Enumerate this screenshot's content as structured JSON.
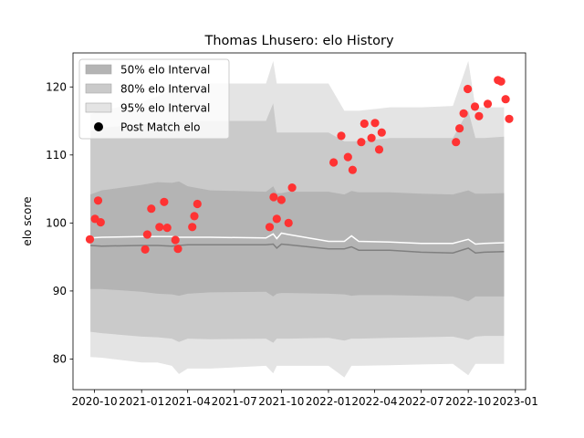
{
  "chart_data": {
    "type": "line",
    "title": "Thomas Lhusero: elo History",
    "xlabel": "",
    "ylabel": "elo score",
    "xlim": [
      "2020-08-20",
      "2023-01-21"
    ],
    "ylim": [
      75.5,
      125
    ],
    "x_ticks": [
      "2020-10",
      "2021-01",
      "2021-04",
      "2021-07",
      "2021-10",
      "2022-01",
      "2022-04",
      "2022-07",
      "2022-10",
      "2023-01"
    ],
    "y_ticks": [
      80,
      90,
      100,
      110,
      120
    ],
    "grid": false,
    "legend_position": "top-left",
    "legend": [
      {
        "label": "50% elo Interval",
        "kind": "band",
        "color": "#b4b4b4"
      },
      {
        "label": "80% elo Interval",
        "kind": "band",
        "color": "#cacaca"
      },
      {
        "label": "95% elo Interval",
        "kind": "band",
        "color": "#e4e4e4"
      },
      {
        "label": "Post Match elo",
        "kind": "marker",
        "color": "#000000"
      }
    ],
    "band_dates": [
      "2020-09-23",
      "2020-10-15",
      "2021-01-01",
      "2021-02-01",
      "2021-03-01",
      "2021-03-15",
      "2021-04-01",
      "2021-05-15",
      "2021-09-01",
      "2021-09-15",
      "2021-09-22",
      "2021-10-01",
      "2021-10-15",
      "2022-01-01",
      "2022-02-01",
      "2022-02-15",
      "2022-03-01",
      "2022-05-01",
      "2022-07-01",
      "2022-09-01",
      "2022-10-01",
      "2022-10-15",
      "2022-11-01",
      "2022-12-10"
    ],
    "series": [
      {
        "name": "95% elo Interval",
        "color": "#e4e4e4",
        "upper": [
          116,
          116.5,
          117.8,
          118.6,
          119.6,
          120,
          120,
          120.5,
          120.5,
          123.8,
          120.5,
          120.5,
          120.5,
          120.5,
          116.5,
          116.5,
          116.5,
          117,
          117,
          117.2,
          123.8,
          117,
          117,
          117
        ],
        "lower": [
          80.3,
          80.2,
          79.5,
          79.5,
          79,
          77.8,
          78.6,
          78.6,
          79,
          77.9,
          79,
          79,
          79,
          79,
          77.3,
          79,
          79,
          79.1,
          79.2,
          79.3,
          77.6,
          79.3,
          79.3,
          79.3
        ]
      },
      {
        "name": "80% elo Interval",
        "color": "#cacaca",
        "upper": [
          113.5,
          114,
          114.5,
          114.5,
          115,
          115,
          115,
          115,
          115,
          117.6,
          113.3,
          113.3,
          113.3,
          113.3,
          112,
          112,
          112,
          112.5,
          112.5,
          112.5,
          116.5,
          112.5,
          112.5,
          112.7
        ],
        "lower": [
          84,
          83.8,
          83.3,
          83.2,
          83,
          82.5,
          83,
          82.9,
          83,
          82.4,
          83,
          83,
          83,
          83.1,
          82.7,
          83,
          83,
          83.1,
          83.2,
          83.3,
          82.8,
          83.3,
          83.4,
          83.4
        ]
      },
      {
        "name": "50% elo Interval",
        "color": "#b4b4b4",
        "upper": [
          104.2,
          104.8,
          105.6,
          106,
          105.9,
          106.1,
          105.4,
          104.8,
          104.6,
          105.4,
          104.4,
          104.4,
          104.6,
          104.6,
          104.2,
          104.7,
          104.5,
          104.5,
          104.3,
          104.2,
          104.8,
          104.3,
          104.3,
          104.4
        ],
        "lower": [
          90.3,
          90.3,
          89.9,
          89.6,
          89.5,
          89.3,
          89.6,
          89.8,
          89.9,
          89.2,
          89.6,
          89.7,
          89.7,
          89.6,
          89.5,
          89.3,
          89.4,
          89.4,
          89.3,
          89.2,
          88.5,
          89.2,
          89.2,
          89.2
        ]
      },
      {
        "name": "mean",
        "color": "#ffffff",
        "values": [
          97.8,
          97.9,
          98,
          98,
          98,
          97.9,
          97.9,
          97.9,
          97.8,
          98.4,
          97.7,
          98.5,
          98.3,
          97.3,
          97.3,
          98.1,
          97.3,
          97.2,
          97,
          97,
          97.6,
          96.9,
          97,
          97.1
        ]
      },
      {
        "name": "median",
        "color": "#808080",
        "values": [
          96.7,
          96.6,
          96.7,
          96.7,
          96.6,
          96.7,
          96.8,
          96.8,
          96.8,
          96.9,
          96.3,
          96.9,
          96.8,
          96.2,
          96.2,
          96.5,
          96,
          96,
          95.7,
          95.6,
          96.3,
          95.6,
          95.7,
          95.8
        ]
      },
      {
        "name": "Post Match elo",
        "color": "#ff3333",
        "points": [
          [
            "2020-09-22",
            97.6
          ],
          [
            "2020-10-02",
            100.6
          ],
          [
            "2020-10-08",
            103.3
          ],
          [
            "2020-10-13",
            100.1
          ],
          [
            "2021-01-08",
            96.1
          ],
          [
            "2021-01-12",
            98.3
          ],
          [
            "2021-01-20",
            102.1
          ],
          [
            "2021-02-05",
            99.4
          ],
          [
            "2021-02-14",
            103.1
          ],
          [
            "2021-02-20",
            99.3
          ],
          [
            "2021-03-08",
            97.5
          ],
          [
            "2021-03-13",
            96.2
          ],
          [
            "2021-04-10",
            99.4
          ],
          [
            "2021-04-14",
            101
          ],
          [
            "2021-04-20",
            102.8
          ],
          [
            "2021-09-08",
            99.4
          ],
          [
            "2021-09-16",
            103.8
          ],
          [
            "2021-09-22",
            100.6
          ],
          [
            "2021-10-01",
            103.4
          ],
          [
            "2021-10-15",
            100
          ],
          [
            "2021-10-22",
            105.2
          ],
          [
            "2022-01-11",
            108.9
          ],
          [
            "2022-01-26",
            112.8
          ],
          [
            "2022-02-08",
            109.7
          ],
          [
            "2022-02-17",
            107.8
          ],
          [
            "2022-03-06",
            111.9
          ],
          [
            "2022-03-12",
            114.6
          ],
          [
            "2022-03-26",
            112.5
          ],
          [
            "2022-04-02",
            114.7
          ],
          [
            "2022-04-10",
            110.8
          ],
          [
            "2022-04-15",
            113.3
          ],
          [
            "2022-09-07",
            111.9
          ],
          [
            "2022-09-14",
            113.9
          ],
          [
            "2022-09-22",
            116.1
          ],
          [
            "2022-09-30",
            119.7
          ],
          [
            "2022-10-14",
            117.1
          ],
          [
            "2022-10-22",
            115.7
          ],
          [
            "2022-11-08",
            117.5
          ],
          [
            "2022-11-28",
            121
          ],
          [
            "2022-12-04",
            120.8
          ],
          [
            "2022-12-13",
            118.2
          ],
          [
            "2022-12-20",
            115.3
          ]
        ]
      }
    ]
  }
}
